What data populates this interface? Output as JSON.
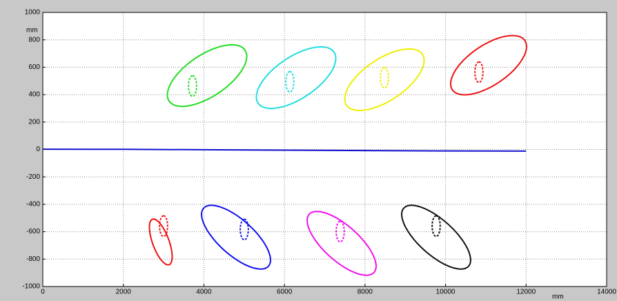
{
  "chart_data": {
    "type": "line",
    "xlabel": "mm",
    "ylabel": "mm",
    "xlim": [
      0,
      14000
    ],
    "xticks": [
      0,
      2000,
      4000,
      6000,
      8000,
      10000,
      12000,
      14000
    ],
    "ylim": [
      -1000,
      1000
    ],
    "yticks": [
      -1000,
      -800,
      -600,
      -400,
      -200,
      0,
      200,
      400,
      600,
      800,
      1000
    ],
    "grid": true,
    "series": [
      {
        "color": "#1010d0",
        "x": [
          0,
          2000,
          4000,
          6000,
          8000,
          10000,
          12000
        ],
        "values": [
          2,
          1,
          -2,
          -5,
          -8,
          -11,
          -12
        ]
      }
    ],
    "ellipses": [
      {
        "color": "#22dd22",
        "center": [
          4078,
          539
        ],
        "major": [
          942,
          186
        ],
        "minor": [
          291,
          -126
        ]
      },
      {
        "color": "#22dddd",
        "center": [
          6289,
          524
        ],
        "major": [
          942,
          186
        ],
        "minor": [
          291,
          -126
        ]
      },
      {
        "color": "#eeee00",
        "center": [
          8482,
          509
        ],
        "major": [
          942,
          186
        ],
        "minor": [
          291,
          -126
        ]
      },
      {
        "color": "#ee1111",
        "center": [
          11069,
          615
        ],
        "major": [
          900,
          180
        ],
        "minor": [
          280,
          -120
        ]
      },
      {
        "color": "#ee1111",
        "center": [
          2930,
          -675
        ],
        "major": [
          206,
          -166
        ],
        "minor": [
          193,
          20
        ]
      },
      {
        "color": "#1111ee",
        "center": [
          4798,
          -640
        ],
        "major": [
          805,
          -212
        ],
        "minor": [
          291,
          96
        ]
      },
      {
        "color": "#ee11ee",
        "center": [
          7420,
          -685
        ],
        "major": [
          805,
          -212
        ],
        "minor": [
          291,
          96
        ]
      },
      {
        "color": "#111111",
        "center": [
          9767,
          -640
        ],
        "major": [
          805,
          -212
        ],
        "minor": [
          291,
          96
        ]
      },
      {
        "color": "#22dd22",
        "dashed": true,
        "center": [
          3718,
          463
        ],
        "major": [
          0,
          75
        ],
        "minor": [
          100,
          0
        ]
      },
      {
        "color": "#22dddd",
        "dashed": true,
        "center": [
          6134,
          494
        ],
        "major": [
          0,
          75
        ],
        "minor": [
          100,
          0
        ]
      },
      {
        "color": "#eeee00",
        "dashed": true,
        "center": [
          8482,
          524
        ],
        "major": [
          0,
          75
        ],
        "minor": [
          100,
          0
        ]
      },
      {
        "color": "#ee1111",
        "dashed": true,
        "center": [
          10829,
          564
        ],
        "major": [
          0,
          75
        ],
        "minor": [
          100,
          0
        ]
      },
      {
        "color": "#ee1111",
        "dashed": true,
        "center": [
          2999,
          -559
        ],
        "major": [
          0,
          75
        ],
        "minor": [
          100,
          0
        ]
      },
      {
        "color": "#1111ee",
        "dashed": true,
        "center": [
          5003,
          -584
        ],
        "major": [
          0,
          75
        ],
        "minor": [
          100,
          0
        ]
      },
      {
        "color": "#ee11ee",
        "dashed": true,
        "center": [
          7385,
          -599
        ],
        "major": [
          0,
          75
        ],
        "minor": [
          100,
          0
        ]
      },
      {
        "color": "#111111",
        "dashed": true,
        "center": [
          9767,
          -559
        ],
        "major": [
          0,
          75
        ],
        "minor": [
          100,
          0
        ]
      }
    ]
  }
}
